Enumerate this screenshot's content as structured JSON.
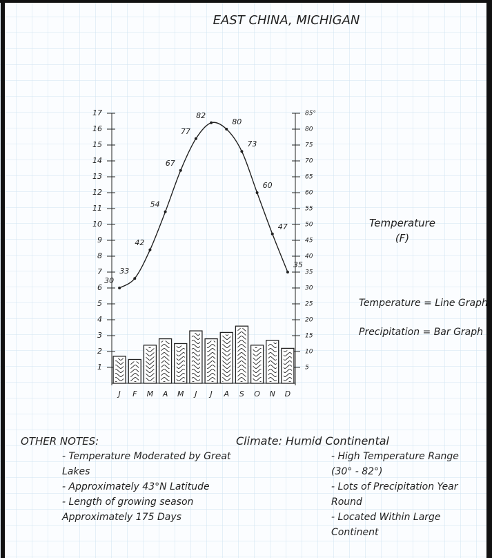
{
  "chart_data": {
    "type": "bar-line",
    "title": "EAST CHINA, MICHIGAN",
    "categories": [
      "J",
      "F",
      "M",
      "A",
      "M",
      "J",
      "J",
      "A",
      "S",
      "O",
      "N",
      "D"
    ],
    "series": [
      {
        "type": "bar",
        "color": "#222222",
        "values": [
          1.7,
          1.5,
          2.4,
          2.8,
          2.5,
          3.3,
          2.8,
          3.2,
          3.6,
          2.4,
          2.7,
          2.2
        ]
      },
      {
        "type": "line",
        "axis": "y2",
        "color": "#222222",
        "values": [
          30,
          33,
          42,
          54,
          67,
          77,
          82,
          80,
          73,
          60,
          47,
          35
        ]
      }
    ],
    "ylim": [
      0,
      17
    ],
    "yticks": [
      1,
      2,
      3,
      4,
      5,
      6,
      7,
      8,
      9,
      10,
      11,
      12,
      13,
      14,
      15,
      16,
      17
    ],
    "y2lim": [
      0,
      85
    ],
    "y2ticks": [
      5,
      10,
      15,
      20,
      25,
      30,
      35,
      40,
      45,
      50,
      55,
      60,
      65,
      70,
      75,
      80,
      {
        "value": 85,
        "label": "85°"
      }
    ],
    "y2label": "Temperature (F)",
    "notes": [
      "Temperature = Line Graph",
      "Precipitation = Bar Graph"
    ]
  },
  "other_notes": {
    "heading": "OTHER NOTES:",
    "items": [
      "- Temperature Moderated by Great Lakes",
      "- Approximately 43°N Latitude",
      "- Length of growing season Approximately 175 Days"
    ]
  },
  "climate": {
    "heading": "Climate: Humid Continental",
    "items": [
      "- High Temperature Range (30° - 82°)",
      "- Lots of Precipitation Year Round",
      "- Located Within Large Continent"
    ]
  }
}
